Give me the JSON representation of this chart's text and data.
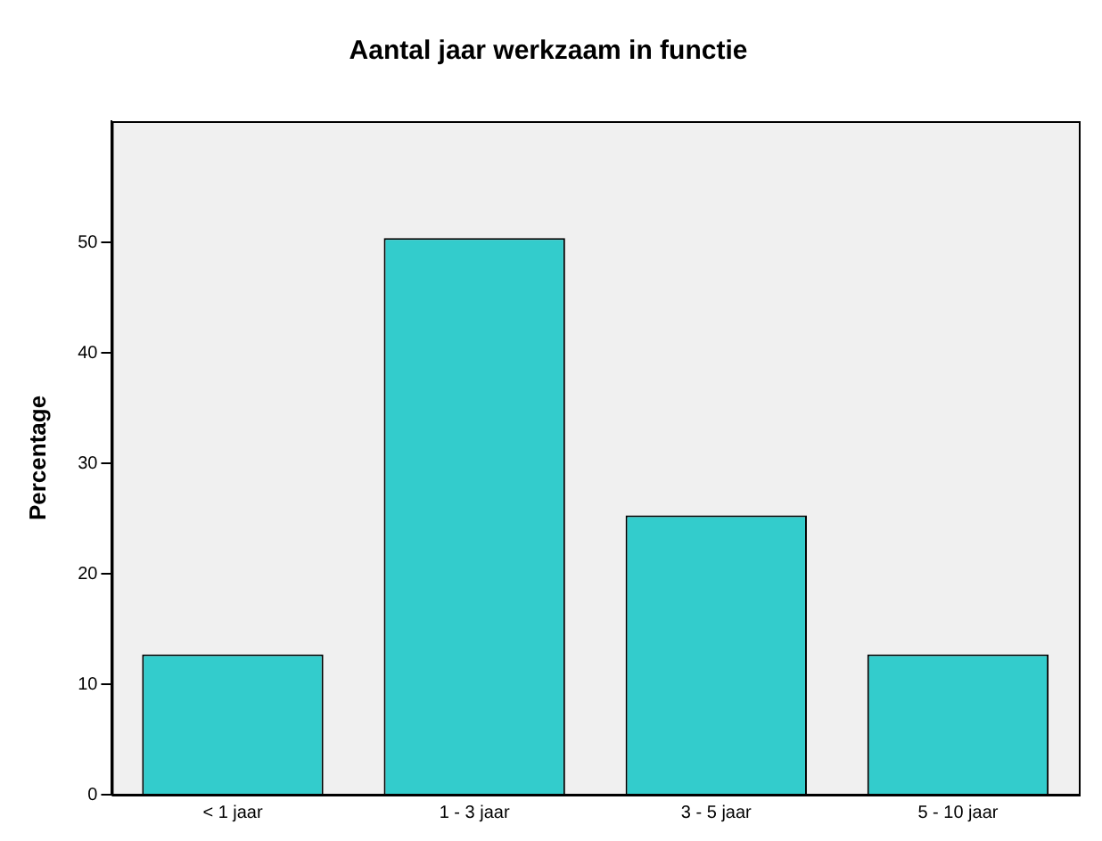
{
  "chart_data": {
    "type": "bar",
    "title": "Aantal jaar werkzaam in functie",
    "ylabel": "Percentage",
    "categories": [
      "< 1 jaar",
      "1 - 3 jaar",
      "3 - 5 jaar",
      "5 - 10 jaar"
    ],
    "values": [
      12.7,
      50.4,
      25.3,
      12.7
    ],
    "color": "#33cccc",
    "ylim": [
      0,
      61
    ],
    "yticks": [
      0,
      10,
      20,
      30,
      40,
      50
    ],
    "grid": false,
    "legend": false
  }
}
